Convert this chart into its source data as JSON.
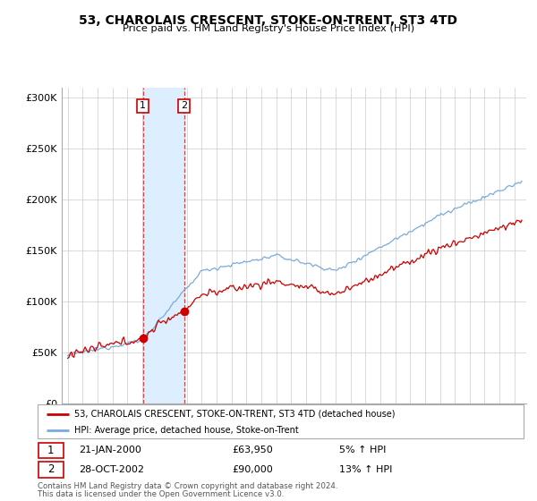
{
  "title": "53, CHAROLAIS CRESCENT, STOKE-ON-TRENT, ST3 4TD",
  "subtitle": "Price paid vs. HM Land Registry's House Price Index (HPI)",
  "sale1_year": 2000.055,
  "sale1_label": "21-JAN-2000",
  "sale1_price": 63950,
  "sale1_hpi_pct": "5% ↑ HPI",
  "sale2_year": 2002.83,
  "sale2_label": "28-OCT-2002",
  "sale2_price": 90000,
  "sale2_hpi_pct": "13% ↑ HPI",
  "legend_line1": "53, CHAROLAIS CRESCENT, STOKE-ON-TRENT, ST3 4TD (detached house)",
  "legend_line2": "HPI: Average price, detached house, Stoke-on-Trent",
  "footer1": "Contains HM Land Registry data © Crown copyright and database right 2024.",
  "footer2": "This data is licensed under the Open Government Licence v3.0.",
  "red_color": "#cc0000",
  "blue_color": "#7aaadd",
  "highlight_color": "#ddeeff",
  "ylim": [
    0,
    310000
  ],
  "yticks": [
    0,
    50000,
    100000,
    150000,
    200000,
    250000,
    300000
  ],
  "ytick_labels": [
    "£0",
    "£50K",
    "£100K",
    "£150K",
    "£200K",
    "£250K",
    "£300K"
  ],
  "xstart": 1995,
  "xend": 2025
}
